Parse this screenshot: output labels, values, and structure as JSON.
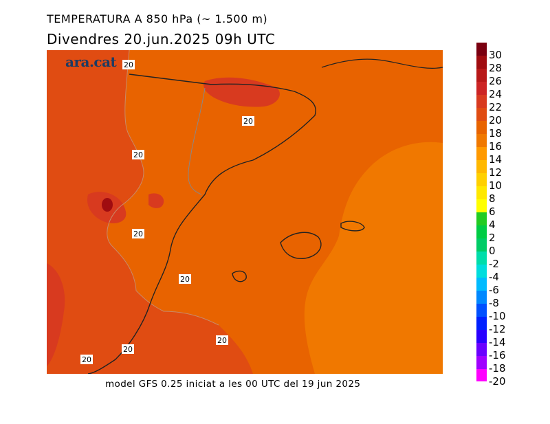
{
  "header": {
    "title": "TEMPERATURA A 850 hPa (~ 1.500 m)",
    "subtitle": "Divendres  20.jun.2025 09h UTC"
  },
  "branding": {
    "logo_text": "ara.cat"
  },
  "footer": {
    "model_text": "model GFS 0.25 iniciat a les 00 UTC del 19 jun 2025"
  },
  "map": {
    "contour_labels": [
      "20",
      "20",
      "20",
      "20",
      "20",
      "20",
      "20",
      "20"
    ]
  },
  "legend": {
    "colors": [
      "#ff00ff",
      "#a000ff",
      "#6a00ff",
      "#2a00ff",
      "#0020ff",
      "#0050ff",
      "#0088ff",
      "#00bbff",
      "#00dddd",
      "#00ddaa",
      "#00cc66",
      "#00cc44",
      "#22cc22",
      "#ffff00",
      "#ffe800",
      "#ffd000",
      "#ffb800",
      "#ff9900",
      "#f07800",
      "#e86300",
      "#e04c12",
      "#d83a1f",
      "#cc2424",
      "#b81818",
      "#a00c10",
      "#7a0010"
    ],
    "labels": [
      "30",
      "28",
      "26",
      "24",
      "22",
      "20",
      "18",
      "16",
      "14",
      "12",
      "10",
      "8",
      "6",
      "4",
      "2",
      "0",
      "-2",
      "-4",
      "-6",
      "-8",
      "-10",
      "-12",
      "-14",
      "-16",
      "-18",
      "-20"
    ]
  }
}
